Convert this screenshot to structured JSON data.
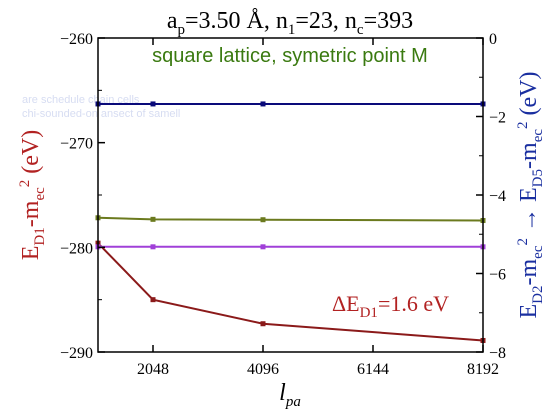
{
  "chart_data": {
    "type": "line",
    "title": "a_p=3.50 Å, n_1=23, n_c=393",
    "subtitle": "square lattice, symetric point M",
    "annotation": "ΔE_D1=1.6 eV",
    "x": [
      1024,
      2048,
      4096,
      8192
    ],
    "xlim": [
      1024,
      8192
    ],
    "xticks": [
      2048,
      4096,
      6144,
      8192
    ],
    "xlabel": "l_pa",
    "ylabel_left": "E_D1-m_ec^2 (eV)",
    "ylim_left": [
      -290,
      -260
    ],
    "yticks_left": [
      -290,
      -280,
      -270,
      -260
    ],
    "ylabel_right": "E_D2-m_ec^2 → E_D5-m_ec^2 (eV)",
    "ylim_right": [
      -8,
      0
    ],
    "yticks_right": [
      -8,
      -6,
      -4,
      -2,
      0
    ],
    "faint_text_1": "are schedule chain cells",
    "faint_text_2": "chi-sounded-on ansect of samell",
    "series": [
      {
        "axis": "left",
        "color": "#8b1a1a",
        "values": [
          -279.6,
          -285.0,
          -287.3,
          -288.9
        ]
      },
      {
        "axis": "right",
        "color": "#0a0a7a",
        "values": [
          -1.68,
          -1.68,
          -1.68,
          -1.68
        ]
      },
      {
        "axis": "right",
        "color": "#6b7a1e",
        "values": [
          -4.58,
          -4.62,
          -4.63,
          -4.65
        ]
      },
      {
        "axis": "right",
        "color": "#a040d8",
        "values": [
          -5.32,
          -5.32,
          -5.32,
          -5.32
        ]
      }
    ],
    "colors": {
      "title": "#000000",
      "subtitle": "#3a7a10",
      "left_axis_label": "#b22222",
      "right_axis_label": "#1a2fa0",
      "annotation": "#b22222"
    }
  }
}
